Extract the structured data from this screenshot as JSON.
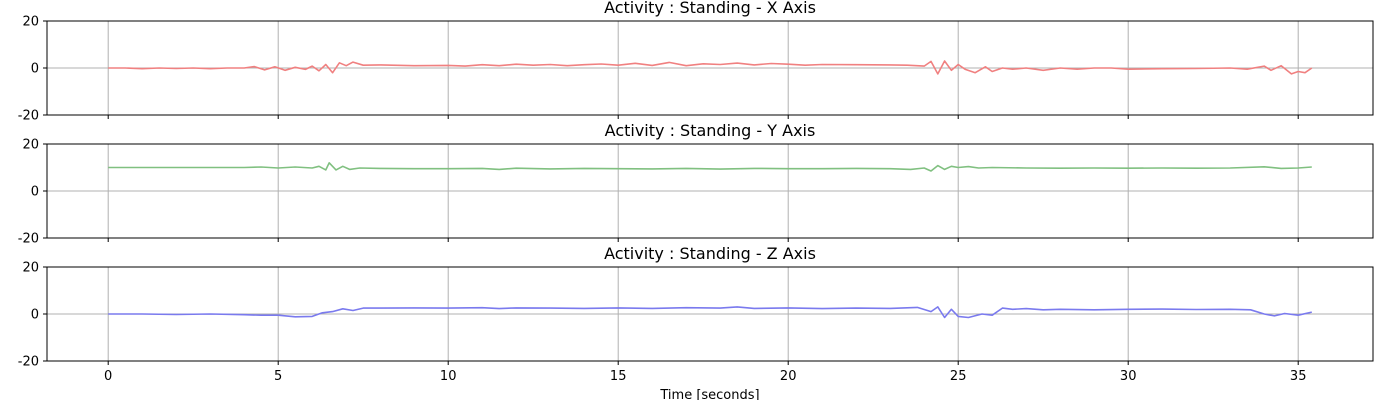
{
  "chart_data": [
    {
      "type": "line",
      "title": "Activity : Standing - X Axis",
      "xlim": [
        -1.8,
        37.2
      ],
      "ylim": [
        -20,
        20
      ],
      "xticks": [
        0,
        5,
        10,
        15,
        20,
        25,
        30,
        35
      ],
      "yticks": [
        -20,
        0,
        20
      ],
      "grid": true,
      "show_x_tick_labels": false,
      "series": [
        {
          "color": "#f08080",
          "x": [
            0,
            0.5,
            1,
            1.5,
            2,
            2.5,
            3,
            3.5,
            4,
            4.3,
            4.6,
            4.9,
            5.2,
            5.5,
            5.8,
            6.0,
            6.2,
            6.4,
            6.6,
            6.8,
            7.0,
            7.2,
            7.5,
            8,
            9,
            10,
            10.5,
            11,
            11.5,
            12,
            12.5,
            13,
            13.5,
            14,
            14.5,
            15,
            15.5,
            16,
            16.5,
            17,
            17.5,
            18,
            18.5,
            19,
            19.5,
            20,
            20.5,
            21,
            22,
            23,
            23.5,
            24,
            24.2,
            24.4,
            24.6,
            24.8,
            25.0,
            25.2,
            25.5,
            25.8,
            26.0,
            26.3,
            26.6,
            27,
            27.5,
            28,
            28.5,
            29,
            29.5,
            30,
            31,
            32,
            33,
            33.5,
            34,
            34.2,
            34.5,
            34.8,
            35.0,
            35.2,
            35.4
          ],
          "y": [
            0,
            0,
            -0.3,
            0,
            -0.2,
            0,
            -0.3,
            0,
            0,
            0.6,
            -0.8,
            0.5,
            -1.0,
            0.3,
            -0.6,
            0.8,
            -1.2,
            1.5,
            -2.0,
            2.2,
            1.0,
            2.5,
            1.2,
            1.3,
            1.0,
            1.1,
            0.8,
            1.4,
            1.0,
            1.6,
            1.2,
            1.5,
            1.0,
            1.4,
            1.7,
            1.2,
            2.0,
            1.1,
            2.4,
            1.0,
            1.8,
            1.5,
            2.1,
            1.3,
            1.9,
            1.6,
            1.2,
            1.5,
            1.4,
            1.3,
            1.2,
            0.8,
            2.8,
            -2.5,
            3.0,
            -1.0,
            1.5,
            -0.5,
            -2.0,
            0.5,
            -1.5,
            0,
            -0.5,
            0,
            -1.0,
            0,
            -0.5,
            0,
            0,
            -0.5,
            -0.3,
            -0.2,
            0,
            -0.5,
            0.8,
            -1.0,
            1.0,
            -2.5,
            -1.5,
            -2.0,
            0
          ]
        }
      ]
    },
    {
      "type": "line",
      "title": "Activity : Standing - Y Axis",
      "xlim": [
        -1.8,
        37.2
      ],
      "ylim": [
        -20,
        20
      ],
      "xticks": [
        0,
        5,
        10,
        15,
        20,
        25,
        30,
        35
      ],
      "yticks": [
        -20,
        0,
        20
      ],
      "grid": true,
      "show_x_tick_labels": false,
      "series": [
        {
          "color": "#80c080",
          "x": [
            0,
            1,
            2,
            3,
            4,
            4.5,
            5,
            5.5,
            6.0,
            6.2,
            6.4,
            6.5,
            6.7,
            6.9,
            7.1,
            7.4,
            8,
            9,
            10,
            11,
            11.5,
            12,
            13,
            14,
            15,
            16,
            17,
            18,
            19,
            20,
            21,
            22,
            23,
            23.6,
            24.0,
            24.2,
            24.4,
            24.6,
            24.8,
            25.0,
            25.3,
            25.6,
            26,
            27,
            28,
            29,
            30,
            31,
            32,
            33,
            34,
            34.5,
            35,
            35.4
          ],
          "y": [
            10,
            10,
            10,
            10,
            10,
            10.2,
            9.8,
            10.2,
            9.8,
            10.5,
            9.0,
            12.0,
            9.0,
            10.5,
            9.2,
            9.8,
            9.6,
            9.5,
            9.5,
            9.6,
            9.2,
            9.7,
            9.4,
            9.6,
            9.5,
            9.4,
            9.6,
            9.3,
            9.6,
            9.5,
            9.5,
            9.6,
            9.5,
            9.2,
            9.8,
            8.5,
            10.8,
            9.2,
            10.5,
            10.0,
            10.4,
            9.8,
            10.0,
            9.8,
            9.7,
            9.8,
            9.7,
            9.8,
            9.7,
            9.8,
            10.3,
            9.6,
            9.8,
            10.2
          ]
        }
      ]
    },
    {
      "type": "line",
      "title": "Activity : Standing - Z Axis",
      "xlabel": "Time [seconds]",
      "xlim": [
        -1.8,
        37.2
      ],
      "ylim": [
        -20,
        20
      ],
      "xticks": [
        0,
        5,
        10,
        15,
        20,
        25,
        30,
        35
      ],
      "yticks": [
        -20,
        0,
        20
      ],
      "grid": true,
      "show_x_tick_labels": true,
      "series": [
        {
          "color": "#7a7aee",
          "x": [
            0,
            1,
            2,
            3,
            4,
            4.5,
            5,
            5.5,
            6.0,
            6.3,
            6.6,
            6.9,
            7.2,
            7.5,
            8,
            9,
            10,
            11,
            11.5,
            12,
            13,
            14,
            15,
            16,
            17,
            18,
            18.5,
            19,
            20,
            21,
            22,
            23,
            23.8,
            24.2,
            24.4,
            24.6,
            24.8,
            25.0,
            25.3,
            25.7,
            26.0,
            26.3,
            26.6,
            27,
            27.5,
            28,
            29,
            30,
            31,
            32,
            33,
            33.6,
            34.0,
            34.3,
            34.6,
            35.0,
            35.4
          ],
          "y": [
            0,
            0,
            -0.2,
            0,
            -0.3,
            -0.5,
            -0.5,
            -1.2,
            -1.0,
            0.5,
            1.0,
            2.2,
            1.5,
            2.5,
            2.5,
            2.6,
            2.5,
            2.7,
            2.3,
            2.6,
            2.5,
            2.4,
            2.6,
            2.4,
            2.7,
            2.5,
            3.0,
            2.4,
            2.6,
            2.3,
            2.5,
            2.4,
            2.8,
            1.0,
            3.0,
            -1.5,
            2.0,
            -1.0,
            -1.5,
            0,
            -0.5,
            2.5,
            2.0,
            2.3,
            1.8,
            2.0,
            1.8,
            2.0,
            2.1,
            1.9,
            2.0,
            1.8,
            0,
            -0.8,
            0.2,
            -0.5,
            0.8
          ]
        }
      ]
    }
  ]
}
